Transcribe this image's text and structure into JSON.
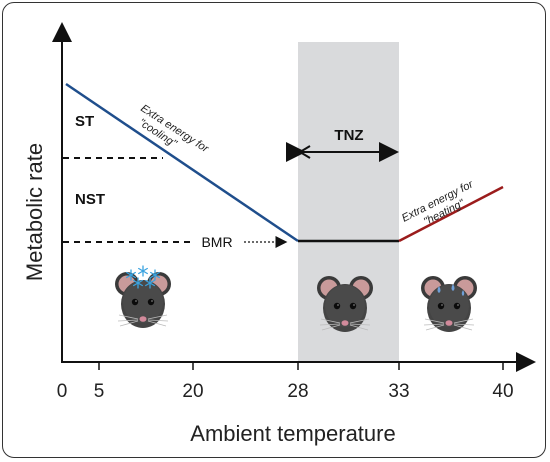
{
  "chart": {
    "y_axis_title": "Metabolic rate",
    "x_axis_title": "Ambient temperature",
    "x_ticks": [
      "0",
      "5",
      "20",
      "28",
      "33",
      "40"
    ]
  },
  "zones": {
    "st_label": "ST",
    "nst_label": "NST",
    "tnz_label": "TNZ",
    "bmr_label": "BMR"
  },
  "annotations": {
    "cooling_line1": "Extra energy for",
    "cooling_line2": "\"cooling\"",
    "heating_line1": "Extra energy  for",
    "heating_line2": "\"heating\""
  },
  "colors": {
    "cold_line": "#1f4e8c",
    "neutral_line": "#111111",
    "warm_line": "#9b1c1c",
    "tnz_band": "#d9dadc",
    "snow": "#3aa3e0",
    "sweat": "#6f9fd6"
  },
  "icons": {
    "cold_mouse": "mouse-with-snowflakes-icon",
    "neutral_mouse": "mouse-icon",
    "warm_mouse": "mouse-sweating-icon"
  }
}
